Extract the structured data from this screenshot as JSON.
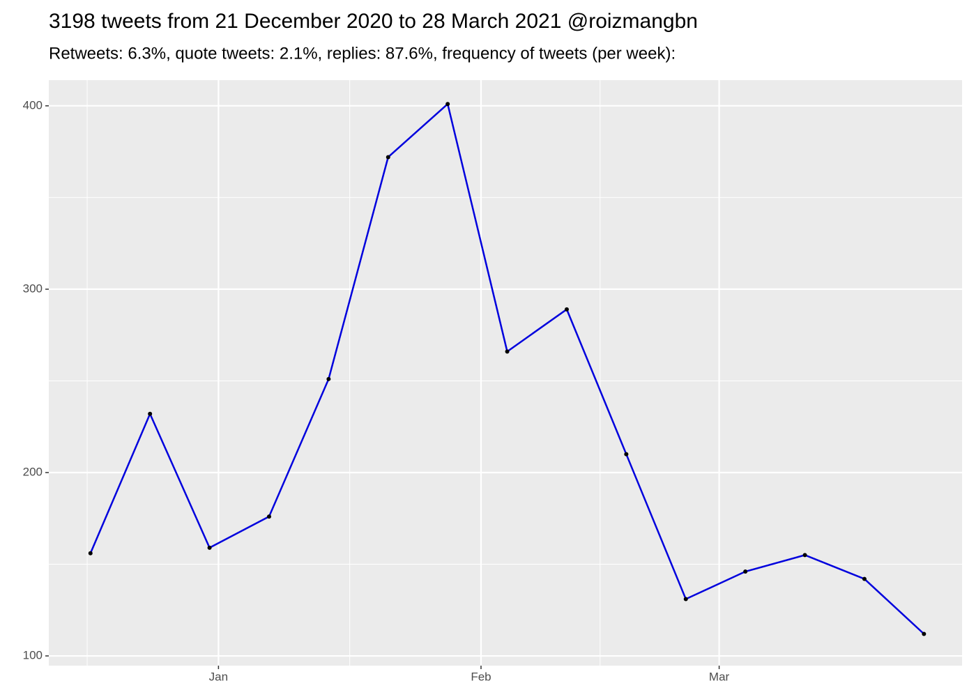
{
  "chart_data": {
    "type": "line",
    "title": "3198 tweets from 21 December 2020 to 28 March 2021 @roizmangbn",
    "subtitle": "Retweets: 6.3%, quote tweets: 2.1%, replies: 87.6%, frequency of tweets (per week):",
    "x": [
      0,
      1,
      2,
      3,
      4,
      5,
      6,
      7,
      8,
      9,
      10,
      11,
      12,
      13,
      14
    ],
    "series": [
      {
        "color": "#0000dd",
        "values": [
          156,
          232,
          159,
          176,
          251,
          372,
          401,
          266,
          289,
          210,
          131,
          146,
          155,
          142,
          112
        ]
      }
    ],
    "xlim": [
      -0.7,
      14.64
    ],
    "xticks": [
      {
        "value": 2.15,
        "label": "Jan"
      },
      {
        "value": 6.56,
        "label": "Feb"
      },
      {
        "value": 10.56,
        "label": "Mar"
      }
    ],
    "ylim": [
      94.7,
      414
    ],
    "yticks": [
      100,
      200,
      300,
      400
    ],
    "grid": true
  }
}
